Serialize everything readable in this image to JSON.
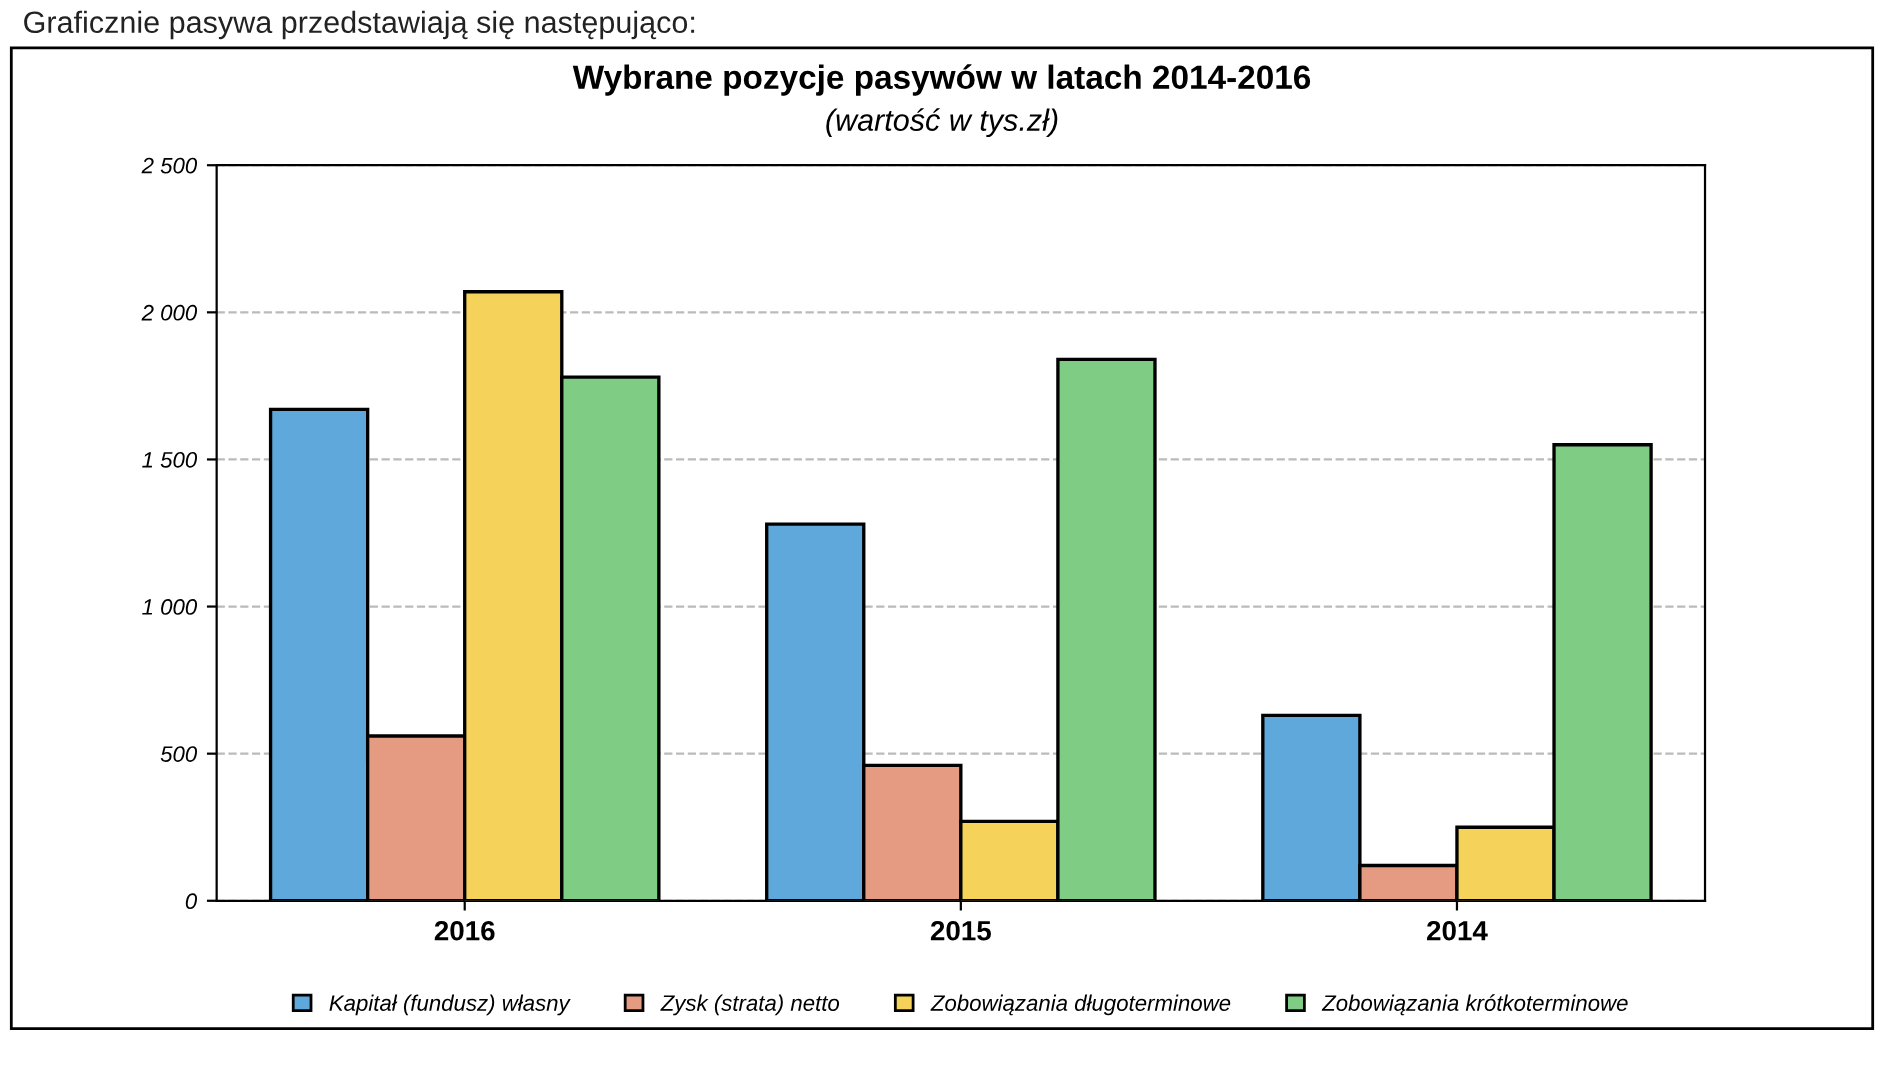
{
  "chart_data": {
    "type": "bar",
    "title": "Wybrane pozycje pasywów w latach 2014-2016",
    "subtitle": "(wartość w tys.zł)",
    "annotations": [
      "Graficznie pasywa przedstawiają się następująco:"
    ],
    "categories": [
      "2016",
      "2015",
      "2014"
    ],
    "series": [
      {
        "name": "Kapitał (fundusz) własny",
        "color": "#5fa8dc",
        "values": [
          1670,
          1280,
          630
        ]
      },
      {
        "name": "Zysk (strata) netto",
        "color": "#e59a82",
        "values": [
          560,
          460,
          120
        ]
      },
      {
        "name": "Zobowiązania długoterminowe",
        "color": "#f5d25a",
        "values": [
          2070,
          270,
          250
        ]
      },
      {
        "name": "Zobowiązania krótkoterminowe",
        "color": "#7fcc85",
        "values": [
          1780,
          1840,
          1550
        ]
      }
    ],
    "ylim": [
      0,
      2500
    ],
    "yticks": [
      0,
      500,
      {
        "value": 1000,
        "label": "1 000"
      },
      {
        "value": 1500,
        "label": "1 500"
      },
      {
        "value": 2000,
        "label": "2 000"
      },
      {
        "value": 2500,
        "label": "2 500"
      }
    ],
    "grid": "y",
    "legend": "bottom"
  }
}
